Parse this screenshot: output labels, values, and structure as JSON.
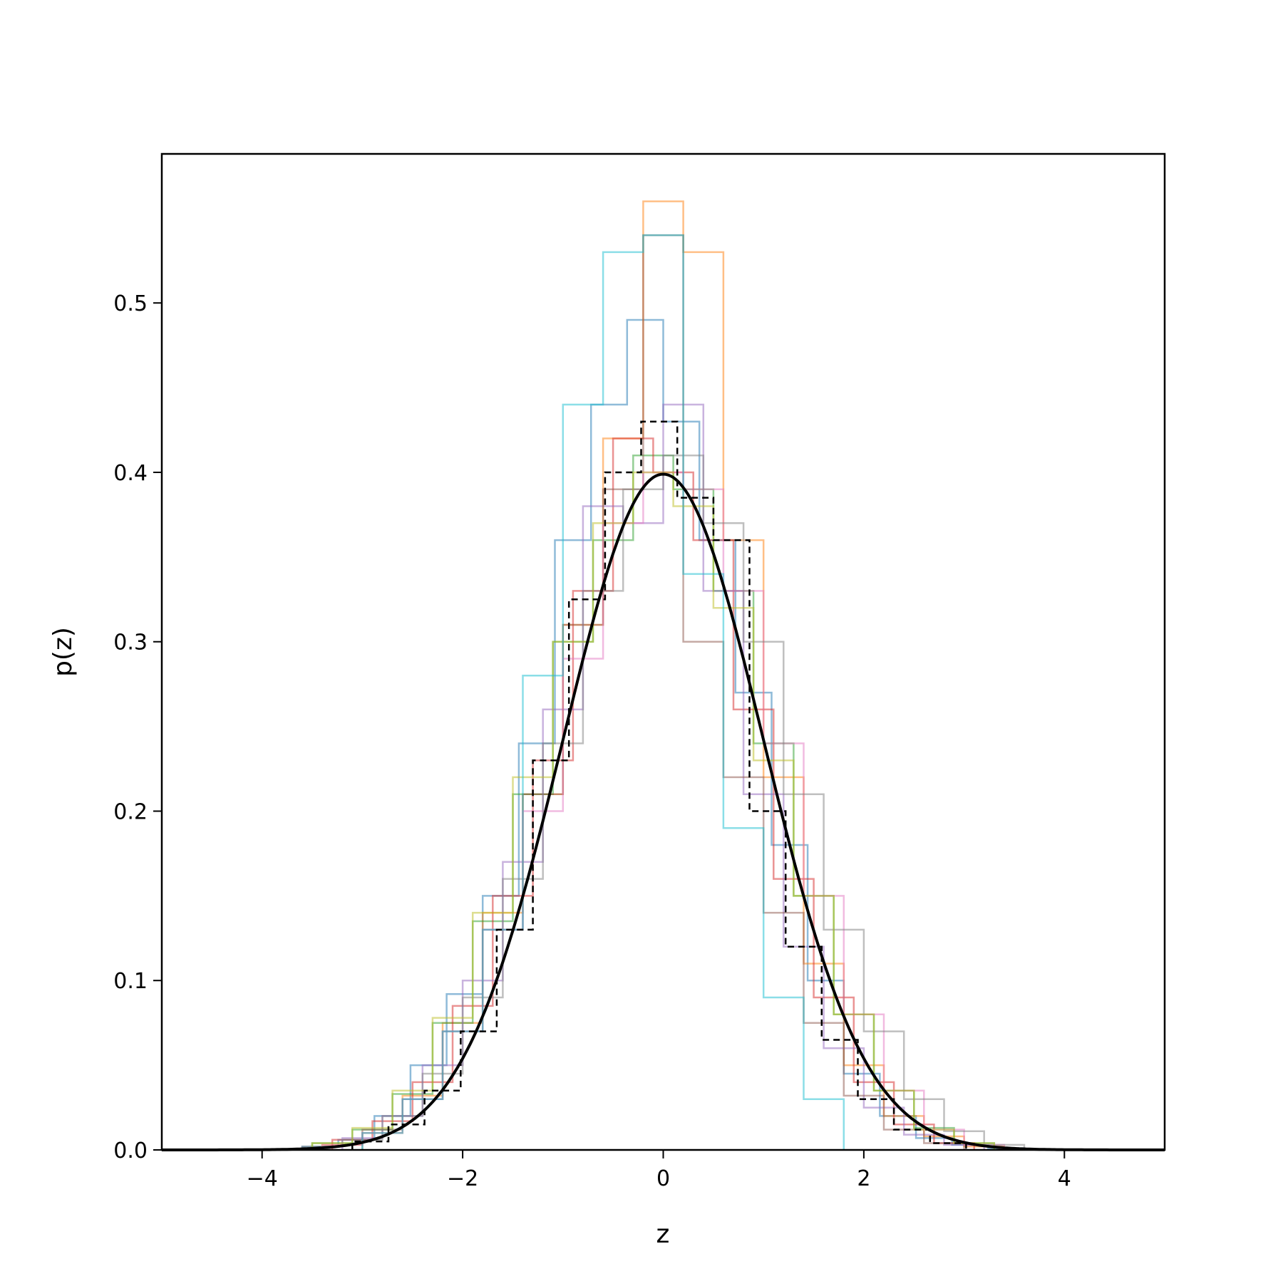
{
  "chart_data": {
    "type": "histogram",
    "title": "",
    "xlabel": "z",
    "ylabel": "p(z)",
    "xlim": [
      -5,
      5
    ],
    "ylim": [
      0,
      0.588
    ],
    "x_ticks": [
      {
        "value": -4,
        "label": "−4"
      },
      {
        "value": -2,
        "label": "−2"
      },
      {
        "value": 0,
        "label": "0"
      },
      {
        "value": 2,
        "label": "2"
      },
      {
        "value": 4,
        "label": "4"
      }
    ],
    "y_ticks": [
      {
        "value": 0.0,
        "label": "0.0"
      },
      {
        "value": 0.1,
        "label": "0.1"
      },
      {
        "value": 0.2,
        "label": "0.2"
      },
      {
        "value": 0.3,
        "label": "0.3"
      },
      {
        "value": 0.4,
        "label": "0.4"
      },
      {
        "value": 0.5,
        "label": "0.5"
      }
    ],
    "grid": false,
    "legend": "none",
    "histograms": [
      {
        "color": "#1f77b4",
        "edges": [
          -3.6,
          -3.24,
          -2.88,
          -2.52,
          -2.16,
          -1.8,
          -1.44,
          -1.08,
          -0.72,
          -0.36,
          0.0,
          0.36,
          0.72,
          1.08,
          1.44,
          1.8,
          2.16,
          2.52,
          2.88,
          3.24,
          3.6
        ],
        "density": [
          0.002,
          0.006,
          0.02,
          0.05,
          0.092,
          0.15,
          0.24,
          0.36,
          0.44,
          0.49,
          0.43,
          0.36,
          0.27,
          0.18,
          0.1,
          0.045,
          0.02,
          0.007,
          0.003,
          0.001
        ]
      },
      {
        "color": "#ff7f0e",
        "edges": [
          -3.4,
          -3.0,
          -2.6,
          -2.2,
          -1.8,
          -1.4,
          -1.0,
          -0.6,
          -0.2,
          0.2,
          0.6,
          1.0,
          1.4,
          1.8,
          2.2,
          2.6,
          3.0,
          3.4
        ],
        "density": [
          0.003,
          0.01,
          0.032,
          0.075,
          0.14,
          0.21,
          0.31,
          0.42,
          0.56,
          0.53,
          0.36,
          0.22,
          0.11,
          0.05,
          0.02,
          0.008,
          0.002
        ]
      },
      {
        "color": "#2ca02c",
        "edges": [
          -3.5,
          -3.1,
          -2.7,
          -2.3,
          -1.9,
          -1.5,
          -1.1,
          -0.7,
          -0.3,
          0.1,
          0.5,
          0.9,
          1.3,
          1.7,
          2.1,
          2.5,
          2.9,
          3.3
        ],
        "density": [
          0.004,
          0.012,
          0.033,
          0.075,
          0.135,
          0.21,
          0.3,
          0.36,
          0.41,
          0.39,
          0.33,
          0.24,
          0.15,
          0.08,
          0.035,
          0.013,
          0.004
        ]
      },
      {
        "color": "#d62728",
        "edges": [
          -3.3,
          -2.9,
          -2.5,
          -2.1,
          -1.7,
          -1.3,
          -0.9,
          -0.5,
          -0.1,
          0.3,
          0.7,
          1.1,
          1.5,
          1.9,
          2.3,
          2.7,
          3.1
        ],
        "density": [
          0.006,
          0.017,
          0.04,
          0.085,
          0.15,
          0.23,
          0.33,
          0.42,
          0.4,
          0.36,
          0.26,
          0.16,
          0.09,
          0.04,
          0.015,
          0.004
        ]
      },
      {
        "color": "#9467bd",
        "edges": [
          -3.2,
          -2.8,
          -2.4,
          -2.0,
          -1.6,
          -1.2,
          -0.8,
          -0.4,
          0.0,
          0.4,
          0.8,
          1.2,
          1.6,
          2.0,
          2.4,
          2.8,
          3.2
        ],
        "density": [
          0.007,
          0.02,
          0.05,
          0.1,
          0.17,
          0.26,
          0.38,
          0.37,
          0.44,
          0.33,
          0.21,
          0.12,
          0.06,
          0.025,
          0.009,
          0.003
        ]
      },
      {
        "color": "#8c564b",
        "edges": [
          -3.0,
          -2.6,
          -2.2,
          -1.8,
          -1.4,
          -1.0,
          -0.6,
          -0.2,
          0.2,
          0.6,
          1.0,
          1.4,
          1.8,
          2.2,
          2.6,
          3.0
        ],
        "density": [
          0.012,
          0.03,
          0.07,
          0.13,
          0.21,
          0.31,
          0.39,
          0.54,
          0.3,
          0.22,
          0.14,
          0.075,
          0.032,
          0.012,
          0.004
        ]
      },
      {
        "color": "#e377c2",
        "edges": [
          -3.4,
          -3.0,
          -2.6,
          -2.2,
          -1.8,
          -1.4,
          -1.0,
          -0.6,
          -0.2,
          0.2,
          0.6,
          1.0,
          1.4,
          1.8,
          2.2,
          2.6,
          3.0,
          3.4
        ],
        "density": [
          0.003,
          0.01,
          0.03,
          0.07,
          0.13,
          0.2,
          0.29,
          0.37,
          0.4,
          0.39,
          0.33,
          0.24,
          0.15,
          0.08,
          0.035,
          0.012,
          0.003
        ]
      },
      {
        "color": "#7f7f7f",
        "edges": [
          -3.6,
          -3.2,
          -2.8,
          -2.4,
          -2.0,
          -1.6,
          -1.2,
          -0.8,
          -0.4,
          0.0,
          0.4,
          0.8,
          1.2,
          1.6,
          2.0,
          2.4,
          2.8,
          3.2,
          3.6
        ],
        "density": [
          0.002,
          0.006,
          0.02,
          0.045,
          0.09,
          0.16,
          0.24,
          0.33,
          0.39,
          0.41,
          0.37,
          0.3,
          0.21,
          0.13,
          0.07,
          0.03,
          0.011,
          0.003
        ]
      },
      {
        "color": "#bcbd22",
        "edges": [
          -3.5,
          -3.1,
          -2.7,
          -2.3,
          -1.9,
          -1.5,
          -1.1,
          -0.7,
          -0.3,
          0.1,
          0.5,
          0.9,
          1.3,
          1.7,
          2.1,
          2.5,
          2.9,
          3.3
        ],
        "density": [
          0.004,
          0.013,
          0.035,
          0.078,
          0.14,
          0.22,
          0.3,
          0.37,
          0.4,
          0.38,
          0.32,
          0.23,
          0.15,
          0.08,
          0.035,
          0.012,
          0.004
        ]
      },
      {
        "color": "#17becf",
        "edges": [
          -3.0,
          -2.6,
          -2.2,
          -1.8,
          -1.4,
          -1.0,
          -0.6,
          -0.2,
          0.2,
          0.6,
          1.0,
          1.4,
          1.8
        ],
        "density": [
          0.01,
          0.03,
          0.07,
          0.13,
          0.28,
          0.44,
          0.53,
          0.54,
          0.34,
          0.19,
          0.09,
          0.03
        ]
      }
    ],
    "reference_histogram": {
      "color": "#000000",
      "style": "dashed",
      "edges": [
        -3.1,
        -2.74,
        -2.38,
        -2.02,
        -1.66,
        -1.3,
        -0.94,
        -0.58,
        -0.22,
        0.14,
        0.5,
        0.86,
        1.22,
        1.58,
        1.94,
        2.3,
        2.66,
        3.02
      ],
      "density": [
        0.005,
        0.015,
        0.035,
        0.07,
        0.13,
        0.23,
        0.325,
        0.4,
        0.43,
        0.385,
        0.36,
        0.2,
        0.12,
        0.065,
        0.03,
        0.012,
        0.004
      ]
    },
    "curve": {
      "color": "#000000",
      "function": "normal_pdf",
      "mean": 0,
      "std": 1,
      "x_range": [
        -5,
        5
      ]
    }
  }
}
